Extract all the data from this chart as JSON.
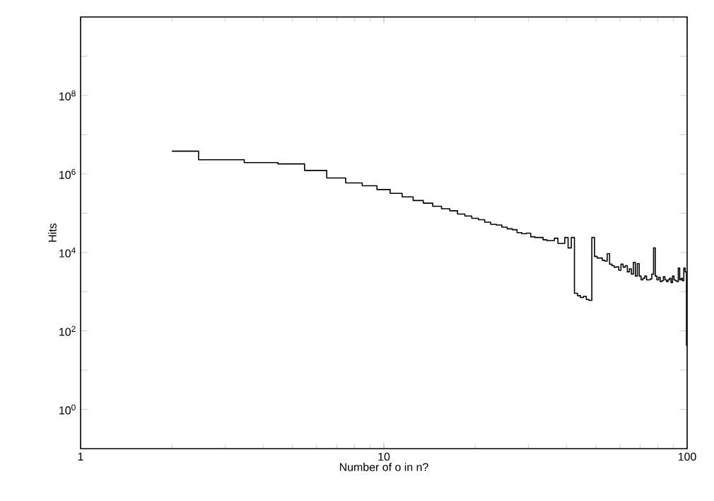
{
  "chart_data": {
    "type": "step",
    "xlabel": "Number of o in n?",
    "ylabel": "Hits",
    "log": "xy",
    "color": "#000000",
    "line_style": "solid",
    "xlim": [
      1,
      100
    ],
    "ylim": [
      0.1,
      10000000000
    ],
    "xticks": [
      1,
      10,
      100
    ],
    "yticks": [
      {
        "value": 1,
        "label": "10$^{0}$"
      },
      {
        "value": 10,
        "label": null
      },
      {
        "value": 100,
        "label": "10$^{2}$"
      },
      {
        "value": 1000,
        "label": null
      },
      {
        "value": 10000,
        "label": "10$^{4}$"
      },
      {
        "value": 100000,
        "label": null
      },
      {
        "value": 1000000,
        "label": "10$^{6}$"
      },
      {
        "value": 10000000,
        "label": null
      },
      {
        "value": 100000000,
        "label": "10$^{8}$"
      },
      {
        "value": 1000000000,
        "label": null
      }
    ],
    "x": [
      2,
      3,
      4,
      5,
      6,
      7,
      8,
      9,
      10,
      11,
      12,
      13,
      14,
      15,
      16,
      17,
      18,
      19,
      20,
      21,
      22,
      23,
      24,
      25,
      26,
      27,
      28,
      29,
      30,
      31,
      32,
      33,
      34,
      35,
      36,
      37,
      38,
      39,
      40,
      41,
      42,
      43,
      44,
      45,
      46,
      47,
      48,
      49,
      50,
      51,
      52,
      53,
      54,
      55,
      56,
      57,
      58,
      59,
      60,
      61,
      62,
      63,
      64,
      65,
      66,
      67,
      68,
      69,
      70,
      71,
      72,
      73,
      74,
      75,
      76,
      77,
      78,
      79,
      80,
      81,
      82,
      83,
      84,
      85,
      86,
      87,
      88,
      89,
      90,
      91,
      92,
      93,
      94,
      95,
      96,
      97,
      98,
      99,
      100
    ],
    "values": [
      3800000.0,
      2300000.0,
      1950000.0,
      1800000.0,
      1230000.0,
      790000.0,
      590000.0,
      500000.0,
      400000.0,
      320000.0,
      260000.0,
      210000.0,
      180000.0,
      150000.0,
      130000.0,
      115000.0,
      95000.0,
      85000.0,
      74000.0,
      68000.0,
      59000.0,
      52000.0,
      50000.0,
      44000.0,
      40000.0,
      38000.0,
      32000.0,
      30000.0,
      31000.0,
      25000.0,
      24000.0,
      24000.0,
      21000.0,
      20000.0,
      20000.0,
      23000.0,
      17000.0,
      17000.0,
      24000.0,
      13000.0,
      24000.0,
      910,
      790,
      710,
      760,
      630,
      600,
      24000.0,
      7900,
      7200,
      7200,
      6300,
      6000,
      9300,
      5000,
      4600,
      4200,
      4300,
      3500,
      5000,
      4200,
      4600,
      3200,
      3800,
      2800,
      5600,
      2500,
      5200,
      2500,
      2000,
      2200,
      2500,
      2000,
      2000,
      2100,
      2800,
      13000.0,
      2500,
      2000,
      2300,
      1800,
      1900,
      2400,
      2000,
      1800,
      2000,
      2200,
      1700,
      2500,
      2000,
      1900,
      1800,
      4000,
      2000,
      2200,
      1900,
      4000,
      3200,
      43
    ]
  }
}
